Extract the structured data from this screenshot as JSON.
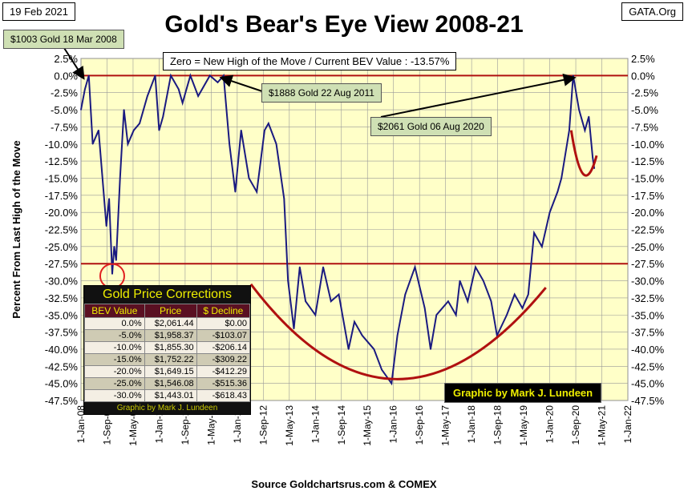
{
  "header": {
    "date": "19 Feb 2021",
    "site": "GATA.Org",
    "title": "Gold's Bear's Eye View 2008-21",
    "source": "Source Goldchartsrus.com & COMEX",
    "credit": "Graphic by Mark J. Lundeen"
  },
  "annotations": {
    "top_note": "Zero = New High of the Move / Current  BEV Value : -13.57%",
    "a1": "$1003  Gold 18 Mar 2008",
    "a2": "$1888  Gold 22 Aug 2011",
    "a3": "$2061  Gold 06 Aug 2020"
  },
  "table": {
    "title": "Gold Price Corrections",
    "headers": [
      "BEV Value",
      "Price",
      "$ Decline"
    ],
    "rows": [
      [
        "0.0%",
        "$2,061.44",
        "$0.00"
      ],
      [
        "-5.0%",
        "$1,958.37",
        "-$103.07"
      ],
      [
        "-10.0%",
        "$1,855.30",
        "-$206.14"
      ],
      [
        "-15.0%",
        "$1,752.22",
        "-$309.22"
      ],
      [
        "-20.0%",
        "$1,649.15",
        "-$412.29"
      ],
      [
        "-25.0%",
        "$1,546.08",
        "-$515.36"
      ],
      [
        "-30.0%",
        "$1,443.01",
        "-$618.43"
      ]
    ],
    "footer": "Graphic by Mark J. Lundeen"
  },
  "colors": {
    "series": "#1a1a80",
    "red": "#b01010",
    "plot_bg": "#ffffc8"
  },
  "chart_data": {
    "type": "line",
    "title": "Gold's Bear's Eye View 2008-21",
    "ylabel": "Percent  From Last High of the Move",
    "xlabel": "Source Goldchartsrus.com & COMEX",
    "ylim": [
      -47.5,
      2.5
    ],
    "xlim": [
      2008.0,
      2022.0
    ],
    "yticks": [
      "2.5%",
      "0.0%",
      "-2.5%",
      "-5.0%",
      "-7.5%",
      "-10.0%",
      "-12.5%",
      "-15.0%",
      "-17.5%",
      "-20.0%",
      "-22.5%",
      "-25.0%",
      "-27.5%",
      "-30.0%",
      "-32.5%",
      "-35.0%",
      "-37.5%",
      "-40.0%",
      "-42.5%",
      "-45.0%",
      "-47.5%"
    ],
    "xticks": [
      "1-Jan-08",
      "1-Sep-08",
      "1-May-09",
      "1-Jan-10",
      "1-Sep-10",
      "1-May-11",
      "1-Jan-12",
      "1-Sep-12",
      "1-May-13",
      "1-Jan-14",
      "1-Sep-14",
      "1-May-15",
      "1-Jan-16",
      "1-Sep-16",
      "1-May-17",
      "1-Jan-18",
      "1-Sep-18",
      "1-May-19",
      "1-Jan-20",
      "1-Sep-20",
      "1-May-21",
      "1-Jan-22"
    ],
    "series": [
      {
        "name": "BEV",
        "x": [
          2008.0,
          2008.1,
          2008.2,
          2008.3,
          2008.45,
          2008.55,
          2008.65,
          2008.72,
          2008.8,
          2008.85,
          2008.9,
          2009.0,
          2009.1,
          2009.2,
          2009.35,
          2009.5,
          2009.7,
          2009.9,
          2010.0,
          2010.1,
          2010.3,
          2010.5,
          2010.6,
          2010.8,
          2011.0,
          2011.3,
          2011.5,
          2011.65,
          2011.8,
          2011.95,
          2012.1,
          2012.3,
          2012.5,
          2012.7,
          2012.8,
          2013.0,
          2013.2,
          2013.3,
          2013.45,
          2013.6,
          2013.75,
          2014.0,
          2014.2,
          2014.4,
          2014.6,
          2014.85,
          2015.0,
          2015.2,
          2015.5,
          2015.7,
          2015.95,
          2016.1,
          2016.3,
          2016.55,
          2016.8,
          2016.95,
          2017.1,
          2017.4,
          2017.6,
          2017.7,
          2017.9,
          2018.1,
          2018.3,
          2018.5,
          2018.65,
          2018.9,
          2019.1,
          2019.3,
          2019.45,
          2019.6,
          2019.8,
          2020.0,
          2020.2,
          2020.3,
          2020.5,
          2020.6,
          2020.75,
          2020.9,
          2021.0,
          2021.1,
          2021.14
        ],
        "y": [
          -5,
          -2,
          0,
          -10,
          -8,
          -15,
          -22,
          -18,
          -29,
          -25,
          -27,
          -15,
          -5,
          -10,
          -8,
          -7,
          -3,
          0,
          -8,
          -6,
          0,
          -2,
          -4,
          0,
          -3,
          0,
          -1,
          0,
          -10,
          -17,
          -8,
          -15,
          -17,
          -8,
          -7,
          -10,
          -18,
          -30,
          -37,
          -28,
          -33,
          -35,
          -28,
          -33,
          -32,
          -40,
          -36,
          -38,
          -40,
          -43,
          -45,
          -38,
          -32,
          -28,
          -34,
          -40,
          -35,
          -33,
          -35,
          -30,
          -33,
          -28,
          -30,
          -33,
          -38,
          -35,
          -32,
          -34,
          -32,
          -23,
          -25,
          -20,
          -17,
          -15,
          -8,
          0,
          -5,
          -8,
          -6,
          -12,
          -13.57
        ]
      }
    ],
    "reference_lines": [
      0,
      -27.5
    ]
  }
}
